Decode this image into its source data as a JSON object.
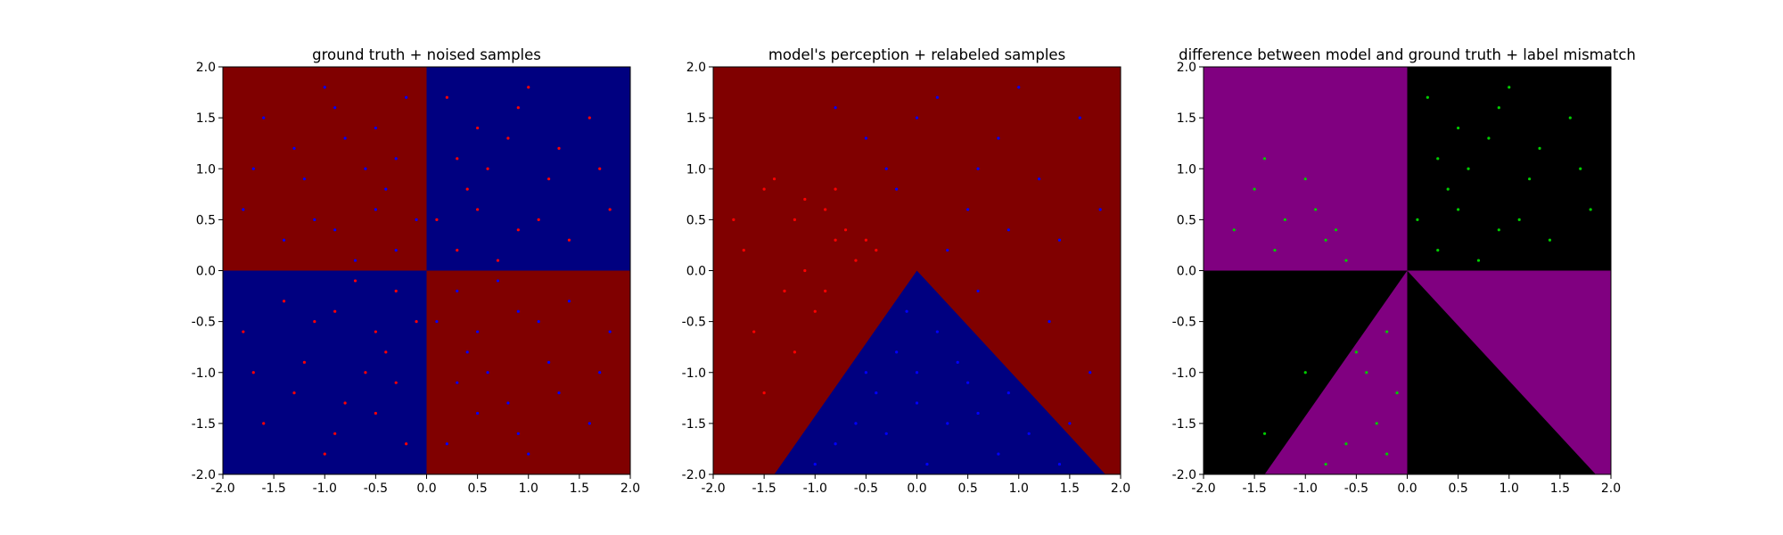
{
  "charts": [
    {
      "title": "ground truth + noised samples",
      "xlim": [
        -2.0,
        2.0
      ],
      "ylim": [
        -2.0,
        2.0
      ],
      "x_ticks": [
        "-2.0",
        "-1.5",
        "-1.0",
        "-0.5",
        "0.0",
        "0.5",
        "1.0",
        "1.5",
        "2.0"
      ],
      "y_ticks": [
        "-2.0",
        "-1.5",
        "-1.0",
        "-0.5",
        "0.0",
        "0.5",
        "1.0",
        "1.5",
        "2.0"
      ]
    },
    {
      "title": "model's perception + relabeled samples",
      "xlim": [
        -2.0,
        2.0
      ],
      "ylim": [
        -2.0,
        2.0
      ],
      "x_ticks": [
        "-2.0",
        "-1.5",
        "-1.0",
        "-0.5",
        "0.0",
        "0.5",
        "1.0",
        "1.5",
        "2.0"
      ],
      "y_ticks": [
        "-2.0",
        "-1.5",
        "-1.0",
        "-0.5",
        "0.0",
        "0.5",
        "1.0",
        "1.5",
        "2.0"
      ]
    },
    {
      "title": "difference between model and ground truth + label mismatch",
      "xlim": [
        -2.0,
        2.0
      ],
      "ylim": [
        -2.0,
        2.0
      ],
      "x_ticks": [
        "-2.0",
        "-1.5",
        "-1.0",
        "-0.5",
        "0.0",
        "0.5",
        "1.0",
        "1.5",
        "2.0"
      ],
      "y_ticks": [
        "-2.0",
        "-1.5",
        "-1.0",
        "-0.5",
        "0.0",
        "0.5",
        "1.0",
        "1.5",
        "2.0"
      ]
    }
  ],
  "chart_data": [
    {
      "type": "scatter",
      "title": "ground truth + noised samples",
      "xlim": [
        -2.0,
        2.0
      ],
      "ylim": [
        -2.0,
        2.0
      ],
      "background_regions": [
        {
          "polygon": [
            [
              -2,
              0
            ],
            [
              0,
              0
            ],
            [
              0,
              2
            ],
            [
              -2,
              2
            ]
          ],
          "color": "#800000"
        },
        {
          "polygon": [
            [
              0,
              0
            ],
            [
              2,
              0
            ],
            [
              2,
              2
            ],
            [
              0,
              2
            ]
          ],
          "color": "#000080"
        },
        {
          "polygon": [
            [
              -2,
              -2
            ],
            [
              0,
              -2
            ],
            [
              0,
              0
            ],
            [
              -2,
              0
            ]
          ],
          "color": "#000080"
        },
        {
          "polygon": [
            [
              0,
              -2
            ],
            [
              2,
              -2
            ],
            [
              2,
              0
            ],
            [
              0,
              0
            ]
          ],
          "color": "#800000"
        }
      ],
      "series": [
        {
          "color": "#ff0000",
          "points": [
            [
              0.8,
              1.3
            ],
            [
              0.5,
              0.6
            ],
            [
              1.2,
              0.9
            ],
            [
              0.3,
              0.2
            ],
            [
              1.6,
              1.5
            ],
            [
              0.9,
              0.4
            ],
            [
              0.2,
              1.7
            ],
            [
              1.4,
              0.3
            ],
            [
              0.6,
              1.0
            ],
            [
              1.0,
              1.8
            ],
            [
              0.4,
              0.8
            ],
            [
              1.8,
              0.6
            ],
            [
              0.7,
              0.1
            ],
            [
              1.3,
              1.2
            ],
            [
              0.1,
              0.5
            ],
            [
              1.1,
              0.5
            ],
            [
              0.5,
              1.4
            ],
            [
              1.7,
              1.0
            ],
            [
              0.9,
              1.6
            ],
            [
              0.3,
              1.1
            ],
            [
              -0.8,
              -1.3
            ],
            [
              -0.5,
              -0.6
            ],
            [
              -1.2,
              -0.9
            ],
            [
              -0.3,
              -0.2
            ],
            [
              -1.6,
              -1.5
            ],
            [
              -0.9,
              -0.4
            ],
            [
              -0.2,
              -1.7
            ],
            [
              -1.4,
              -0.3
            ],
            [
              -0.6,
              -1.0
            ],
            [
              -1.0,
              -1.8
            ],
            [
              -0.4,
              -0.8
            ],
            [
              -1.8,
              -0.6
            ],
            [
              -0.7,
              -0.1
            ],
            [
              -1.3,
              -1.2
            ],
            [
              -0.1,
              -0.5
            ],
            [
              -1.1,
              -0.5
            ],
            [
              -0.5,
              -1.4
            ],
            [
              -1.7,
              -1.0
            ],
            [
              -0.9,
              -1.6
            ],
            [
              -0.3,
              -1.1
            ]
          ]
        },
        {
          "color": "#0000ff",
          "points": [
            [
              -0.8,
              1.3
            ],
            [
              -0.5,
              0.6
            ],
            [
              -1.2,
              0.9
            ],
            [
              -0.3,
              0.2
            ],
            [
              -1.6,
              1.5
            ],
            [
              -0.9,
              0.4
            ],
            [
              -0.2,
              1.7
            ],
            [
              -1.4,
              0.3
            ],
            [
              -0.6,
              1.0
            ],
            [
              -1.0,
              1.8
            ],
            [
              -0.4,
              0.8
            ],
            [
              -1.8,
              0.6
            ],
            [
              -0.7,
              0.1
            ],
            [
              -1.3,
              1.2
            ],
            [
              -0.1,
              0.5
            ],
            [
              -1.1,
              0.5
            ],
            [
              -0.5,
              1.4
            ],
            [
              -1.7,
              1.0
            ],
            [
              -0.9,
              1.6
            ],
            [
              -0.3,
              1.1
            ],
            [
              0.8,
              -1.3
            ],
            [
              0.5,
              -0.6
            ],
            [
              1.2,
              -0.9
            ],
            [
              0.3,
              -0.2
            ],
            [
              1.6,
              -1.5
            ],
            [
              0.9,
              -0.4
            ],
            [
              0.2,
              -1.7
            ],
            [
              1.4,
              -0.3
            ],
            [
              0.6,
              -1.0
            ],
            [
              1.0,
              -1.8
            ],
            [
              0.4,
              -0.8
            ],
            [
              1.8,
              -0.6
            ],
            [
              0.7,
              -0.1
            ],
            [
              1.3,
              -1.2
            ],
            [
              0.1,
              -0.5
            ],
            [
              1.1,
              -0.5
            ],
            [
              0.5,
              -1.4
            ],
            [
              1.7,
              -1.0
            ],
            [
              0.9,
              -1.6
            ],
            [
              0.3,
              -1.1
            ]
          ]
        }
      ]
    },
    {
      "type": "scatter",
      "title": "model's perception + relabeled samples",
      "xlim": [
        -2.0,
        2.0
      ],
      "ylim": [
        -2.0,
        2.0
      ],
      "background_regions": [
        {
          "polygon": [
            [
              -2,
              -2
            ],
            [
              2,
              -2
            ],
            [
              2,
              2
            ],
            [
              -2,
              2
            ]
          ],
          "color": "#800000"
        },
        {
          "polygon": [
            [
              0,
              0
            ],
            [
              1.85,
              -2
            ],
            [
              -1.4,
              -2
            ]
          ],
          "color": "#000080"
        }
      ],
      "series": [
        {
          "color": "#ff0000",
          "points": [
            [
              -0.8,
              0.3
            ],
            [
              -1.2,
              0.5
            ],
            [
              -0.6,
              0.1
            ],
            [
              -1.5,
              0.8
            ],
            [
              -0.9,
              0.6
            ],
            [
              -1.3,
              -0.2
            ],
            [
              -1.7,
              0.2
            ],
            [
              -0.7,
              0.4
            ],
            [
              -1.0,
              -0.4
            ],
            [
              -1.4,
              0.9
            ],
            [
              -0.5,
              0.3
            ],
            [
              -1.1,
              0.0
            ],
            [
              -1.6,
              -0.6
            ],
            [
              -0.9,
              -0.2
            ],
            [
              -1.8,
              0.5
            ],
            [
              -0.4,
              0.2
            ],
            [
              -1.2,
              -0.8
            ],
            [
              -1.5,
              -1.2
            ],
            [
              -0.8,
              0.8
            ],
            [
              -1.1,
              0.7
            ]
          ]
        },
        {
          "color": "#0000ff",
          "points": [
            [
              0.8,
              1.3
            ],
            [
              0.5,
              0.6
            ],
            [
              1.2,
              0.9
            ],
            [
              0.3,
              0.2
            ],
            [
              1.6,
              1.5
            ],
            [
              0.9,
              0.4
            ],
            [
              0.2,
              1.7
            ],
            [
              1.4,
              0.3
            ],
            [
              0.6,
              1.0
            ],
            [
              1.0,
              1.8
            ],
            [
              -0.5,
              1.3
            ],
            [
              -0.2,
              0.8
            ],
            [
              0.0,
              1.5
            ],
            [
              -0.8,
              1.6
            ],
            [
              1.8,
              0.6
            ],
            [
              1.3,
              -0.5
            ],
            [
              1.7,
              -1.0
            ],
            [
              0.6,
              -0.2
            ],
            [
              1.5,
              -1.5
            ],
            [
              -0.3,
              1.0
            ],
            [
              0.0,
              -1.0
            ],
            [
              0.3,
              -1.5
            ],
            [
              -0.4,
              -1.2
            ],
            [
              0.8,
              -1.8
            ],
            [
              -0.8,
              -1.7
            ],
            [
              0.2,
              -0.6
            ],
            [
              -0.2,
              -0.8
            ],
            [
              0.5,
              -1.1
            ],
            [
              1.1,
              -1.6
            ],
            [
              -0.6,
              -1.5
            ],
            [
              0.1,
              -1.9
            ],
            [
              -0.1,
              -0.4
            ],
            [
              0.6,
              -1.4
            ],
            [
              -0.3,
              -1.6
            ],
            [
              0.4,
              -0.9
            ],
            [
              0.9,
              -1.2
            ],
            [
              -1.0,
              -1.9
            ],
            [
              0.0,
              -1.3
            ],
            [
              1.4,
              -1.9
            ],
            [
              -0.5,
              -1.0
            ]
          ]
        }
      ]
    },
    {
      "type": "scatter",
      "title": "difference between model and ground truth + label mismatch",
      "xlim": [
        -2.0,
        2.0
      ],
      "ylim": [
        -2.0,
        2.0
      ],
      "background_regions": [
        {
          "polygon": [
            [
              -2,
              -2
            ],
            [
              2,
              -2
            ],
            [
              2,
              2
            ],
            [
              -2,
              2
            ]
          ],
          "color": "#000000"
        },
        {
          "polygon": [
            [
              -2,
              0
            ],
            [
              0,
              0
            ],
            [
              0,
              2
            ],
            [
              -2,
              2
            ]
          ],
          "color": "#800080"
        },
        {
          "polygon": [
            [
              0,
              0
            ],
            [
              2,
              0
            ],
            [
              2,
              -2
            ],
            [
              1.85,
              -2
            ]
          ],
          "color": "#800080"
        },
        {
          "polygon": [
            [
              0,
              0
            ],
            [
              0,
              -2
            ],
            [
              -1.4,
              -2
            ]
          ],
          "color": "#800080"
        }
      ],
      "series": [
        {
          "color": "#00cc00",
          "points": [
            [
              0.8,
              1.3
            ],
            [
              0.5,
              0.6
            ],
            [
              1.2,
              0.9
            ],
            [
              0.3,
              0.2
            ],
            [
              1.6,
              1.5
            ],
            [
              0.9,
              0.4
            ],
            [
              0.2,
              1.7
            ],
            [
              1.4,
              0.3
            ],
            [
              0.6,
              1.0
            ],
            [
              1.0,
              1.8
            ],
            [
              0.4,
              0.8
            ],
            [
              1.8,
              0.6
            ],
            [
              0.7,
              0.1
            ],
            [
              1.3,
              1.2
            ],
            [
              0.1,
              0.5
            ],
            [
              1.1,
              0.5
            ],
            [
              0.5,
              1.4
            ],
            [
              1.7,
              1.0
            ],
            [
              0.9,
              1.6
            ],
            [
              0.3,
              1.1
            ],
            [
              -0.8,
              0.3
            ],
            [
              -1.2,
              0.5
            ],
            [
              -0.6,
              0.1
            ],
            [
              -1.5,
              0.8
            ],
            [
              -0.9,
              0.6
            ],
            [
              -1.3,
              0.2
            ],
            [
              -1.7,
              0.4
            ],
            [
              -0.7,
              0.4
            ],
            [
              -1.0,
              0.9
            ],
            [
              -1.4,
              1.1
            ],
            [
              -0.2,
              -0.6
            ],
            [
              -0.4,
              -1.0
            ],
            [
              -0.3,
              -1.5
            ],
            [
              -0.6,
              -1.7
            ],
            [
              -0.1,
              -1.2
            ],
            [
              -0.8,
              -1.9
            ],
            [
              -0.5,
              -0.8
            ],
            [
              -0.2,
              -1.8
            ],
            [
              -1.0,
              -1.0
            ],
            [
              -1.4,
              -1.6
            ]
          ]
        }
      ]
    }
  ]
}
